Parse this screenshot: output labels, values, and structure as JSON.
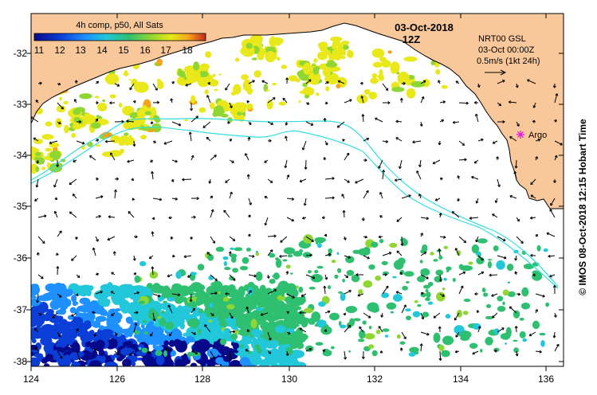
{
  "map": {
    "date_title": "03-Oct-2018",
    "time_title": "12Z",
    "colorbar": {
      "title": "4h comp, p50, All Sats",
      "ticks": [
        "11",
        "12",
        "13",
        "14",
        "15",
        "16",
        "17",
        "18"
      ],
      "colors": [
        "#08088a",
        "#0a3ed6",
        "#1e90ff",
        "#22c7d9",
        "#2fbf71",
        "#8fd632",
        "#e8e81a",
        "#f4a41c",
        "#c8281a"
      ]
    },
    "current_info": {
      "line1": "NRT00 GSL",
      "line2": "03-Oct 00:00Z",
      "line3": "0.5m/s (1kt 24h)"
    },
    "argo_label": "Argo",
    "credit": "© IMOS 08-Oct-2018 12:15 Hobart Time",
    "land_color": "#f9c89a",
    "current_line_color": "#33dde0",
    "argo_color": "#e21de2",
    "x_ticks": [
      "124",
      "126",
      "128",
      "130",
      "132",
      "134",
      "136"
    ],
    "y_ticks": [
      "-32",
      "-33",
      "-34",
      "-35",
      "-36",
      "-37",
      "-38"
    ]
  }
}
